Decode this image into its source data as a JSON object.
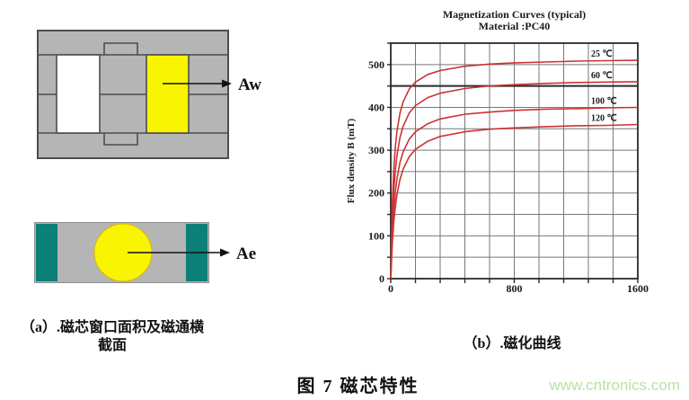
{
  "diagram_a": {
    "aw_label": "Aw",
    "caption_line1": "（a）.磁芯窗口面积及磁通横",
    "caption_line2": "截面",
    "colors": {
      "core_gray": "#b5b5b5",
      "window_yellow": "#f8f402",
      "outline": "#4d4d4d"
    }
  },
  "diagram_ae": {
    "ae_label": "Ae",
    "colors": {
      "bar_gray": "#b5b5b5",
      "end_teal": "#0b8076",
      "circle_yellow": "#f8f402"
    }
  },
  "figure": {
    "caption": "图 7 磁芯特性"
  },
  "watermark": {
    "text": "www.cntronics.com",
    "color": "#b9e2a6"
  },
  "chart_data": {
    "type": "line",
    "title_line1": "Magnetization Curves (typical)",
    "title_line2": "Material :PC40",
    "ylabel": "Flux density B (mT)",
    "xlabel": "",
    "xlim": [
      0,
      1600
    ],
    "ylim": [
      0,
      550
    ],
    "x_grid_step": 160,
    "y_grid_step": 50,
    "x_ticks": [
      0,
      800,
      1600
    ],
    "y_ticks": [
      0,
      100,
      200,
      300,
      400,
      500
    ],
    "reference_line_y": 450,
    "grid": true,
    "legend_position": "inside-top-right",
    "line_color": "#cc3333",
    "x": [
      0,
      10,
      20,
      30,
      40,
      60,
      80,
      120,
      160,
      240,
      320,
      480,
      640,
      800,
      1000,
      1200,
      1400,
      1600
    ],
    "series": [
      {
        "name": "25 ℃",
        "values": [
          0,
          172,
          258,
          310,
          344,
          387,
          413,
          443,
          459,
          477,
          486,
          496,
          501,
          504,
          506,
          508,
          509,
          510
        ]
      },
      {
        "name": "60 ℃",
        "values": [
          0,
          133,
          208,
          255,
          287,
          330,
          356,
          387,
          404,
          423,
          433,
          444,
          450,
          453,
          456,
          458,
          459,
          460
        ]
      },
      {
        "name": "100 ℃",
        "values": [
          0,
          102,
          163,
          204,
          233,
          272,
          296,
          326,
          343,
          362,
          373,
          384,
          389,
          393,
          396,
          397,
          399,
          400
        ]
      },
      {
        "name": "120 ℃",
        "values": [
          0,
          82,
          134,
          170,
          196,
          232,
          256,
          285,
          302,
          321,
          332,
          343,
          349,
          352,
          355,
          357,
          358,
          360
        ]
      }
    ]
  }
}
